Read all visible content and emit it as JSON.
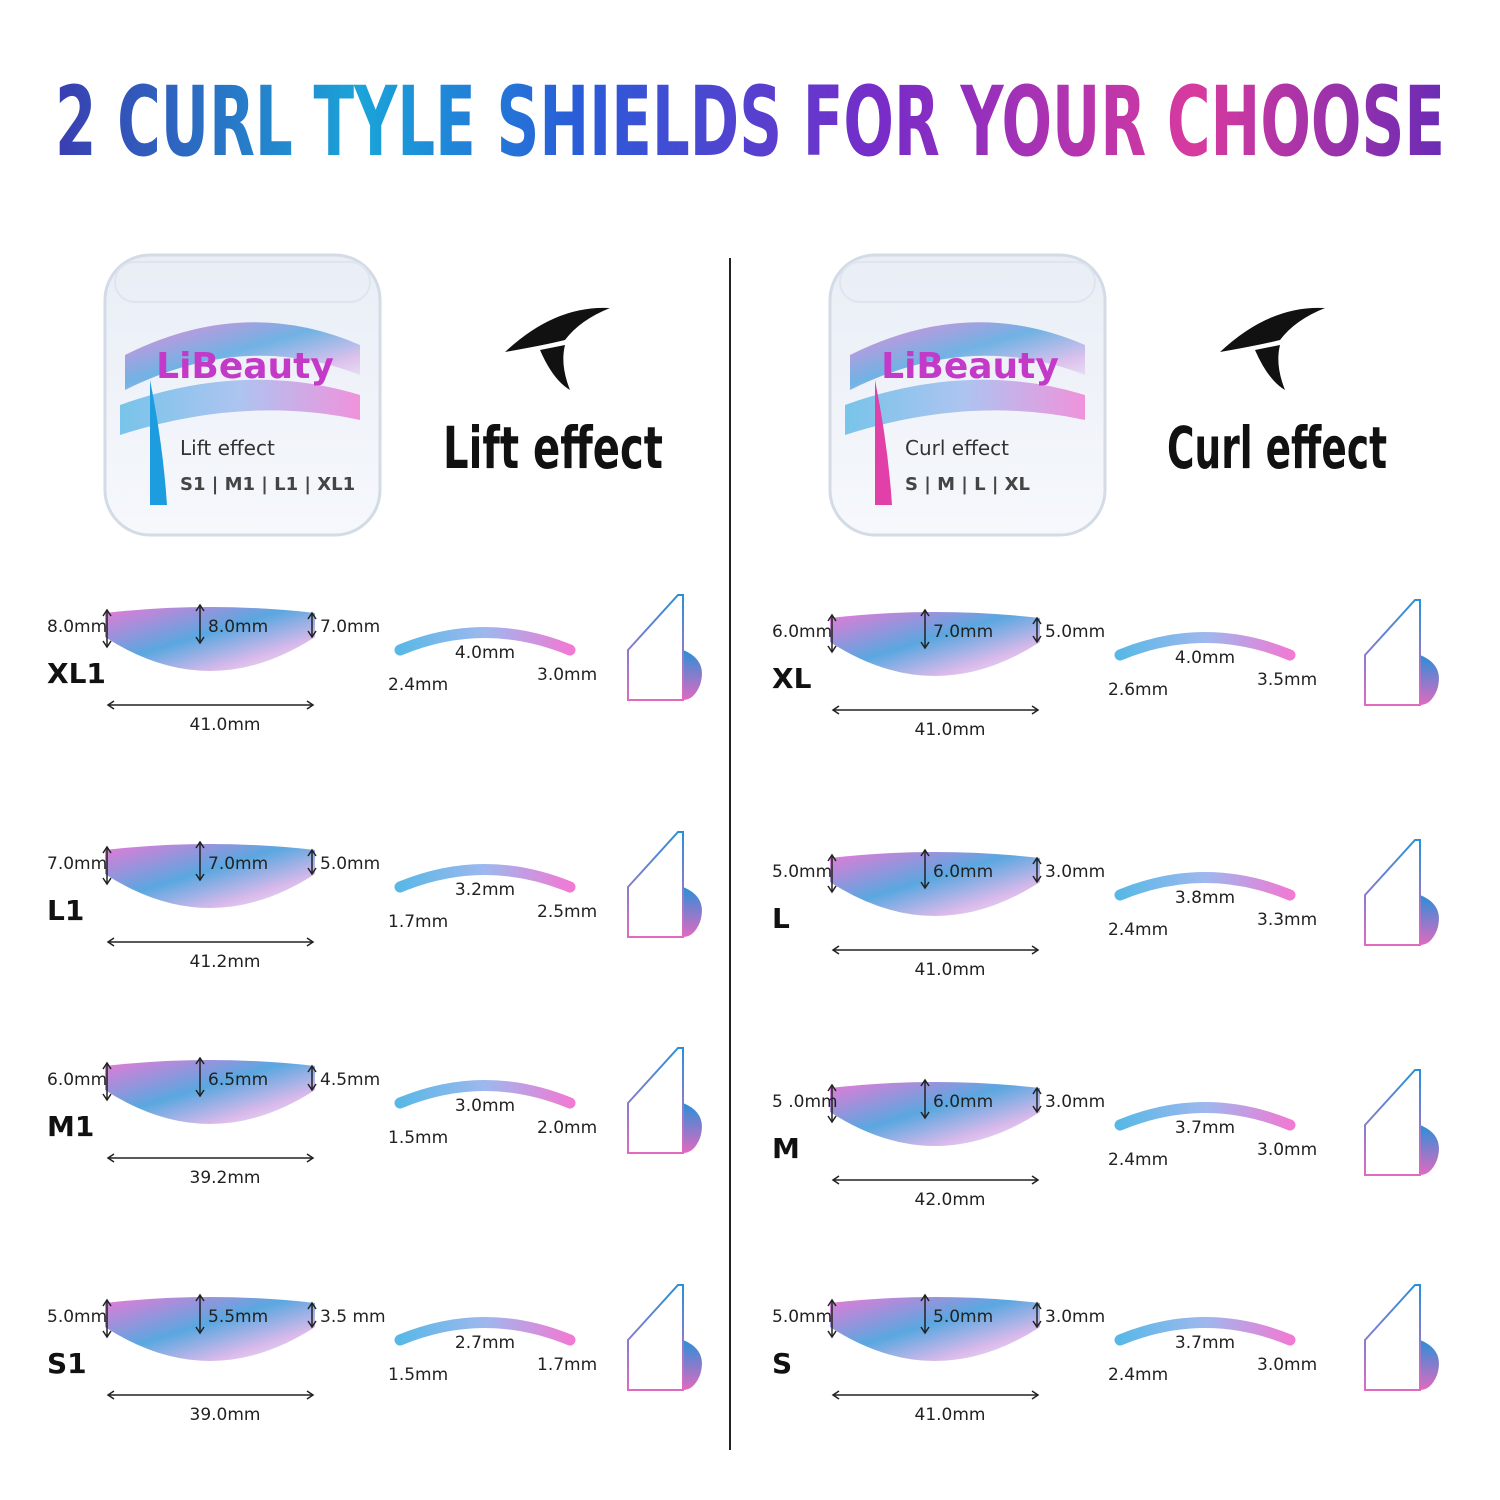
{
  "header": {
    "title": "2 CURL TYLE SHIELDS FOR YOUR CHOOSE"
  },
  "panels": [
    {
      "box_brand": "LiBeauty",
      "box_label": "Lift effect",
      "box_sizes": "S1 | M1 | L1 | XL1",
      "heading": "Lift effect",
      "rows": [
        {
          "size": "XL1",
          "left_height": "8.0mm",
          "center_height": "8.0mm",
          "right_height": "7.0mm",
          "width": "41.0mm",
          "side_left": "2.4mm",
          "side_center": "4.0mm",
          "side_right": "3.0mm"
        },
        {
          "size": "L1",
          "left_height": "7.0mm",
          "center_height": "7.0mm",
          "right_height": "5.0mm",
          "width": "41.2mm",
          "side_left": "1.7mm",
          "side_center": "3.2mm",
          "side_right": "2.5mm"
        },
        {
          "size": "M1",
          "left_height": "6.0mm",
          "center_height": "6.5mm",
          "right_height": "4.5mm",
          "width": "39.2mm",
          "side_left": "1.5mm",
          "side_center": "3.0mm",
          "side_right": "2.0mm"
        },
        {
          "size": "S1",
          "left_height": "5.0mm",
          "center_height": "5.5mm",
          "right_height": "3.5 mm",
          "width": "39.0mm",
          "side_left": "1.5mm",
          "side_center": "2.7mm",
          "side_right": "1.7mm"
        }
      ]
    },
    {
      "box_brand": "LiBeauty",
      "box_label": "Curl effect",
      "box_sizes": "S | M | L | XL",
      "heading": "Curl effect",
      "rows": [
        {
          "size": "XL",
          "left_height": "6.0mm",
          "center_height": "7.0mm",
          "right_height": "5.0mm",
          "width": "41.0mm",
          "side_left": "2.6mm",
          "side_center": "4.0mm",
          "side_right": "3.5mm"
        },
        {
          "size": "L",
          "left_height": "5.0mm",
          "center_height": "6.0mm",
          "right_height": "3.0mm",
          "width": "41.0mm",
          "side_left": "2.4mm",
          "side_center": "3.8mm",
          "side_right": "3.3mm"
        },
        {
          "size": "M",
          "left_height": "5 .0mm",
          "center_height": "6.0mm",
          "right_height": "3.0mm",
          "width": "42.0mm",
          "side_left": "2.4mm",
          "side_center": "3.7mm",
          "side_right": "3.0mm"
        },
        {
          "size": "S",
          "left_height": "5.0mm",
          "center_height": "5.0mm",
          "right_height": "3.0mm",
          "width": "41.0mm",
          "side_left": "2.4mm",
          "side_center": "3.7mm",
          "side_right": "3.0mm"
        }
      ]
    }
  ]
}
